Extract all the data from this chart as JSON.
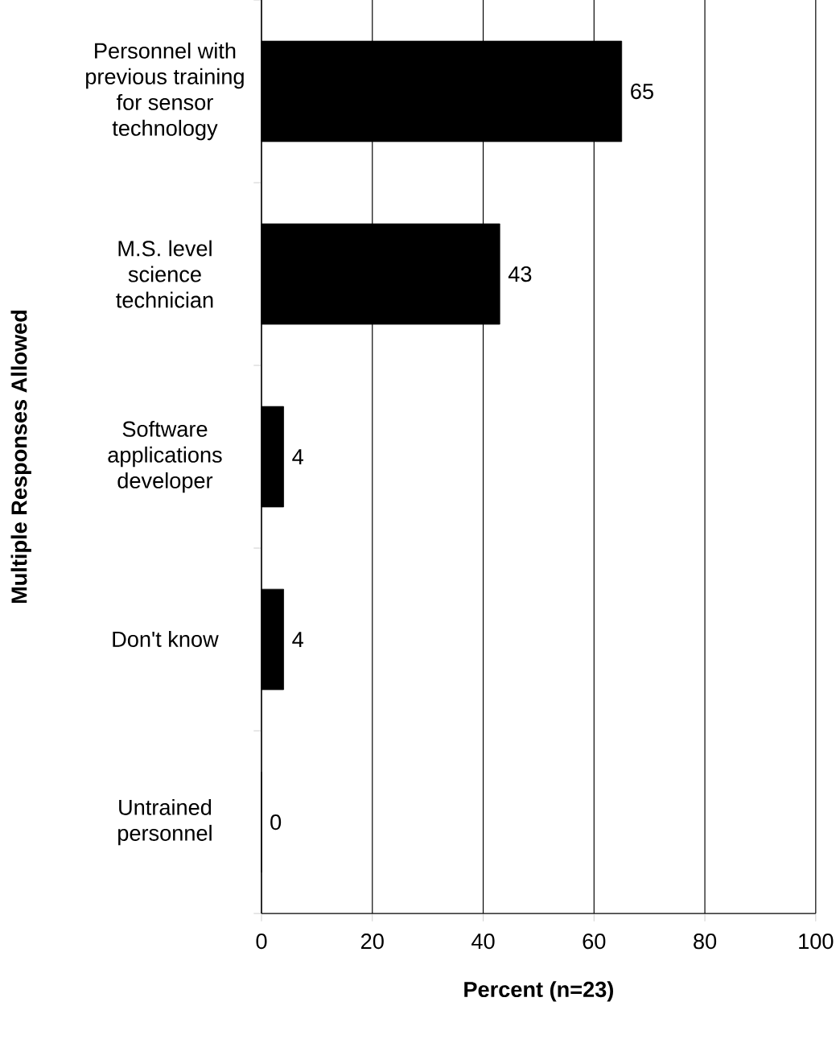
{
  "chart_data": {
    "type": "bar",
    "orientation": "horizontal",
    "xlabel": "Percent (n=23)",
    "ylabel": "Multiple Responses Allowed",
    "categories": [
      "Personnel with previous training for sensor technology",
      "M.S. level science technician",
      "Software applications developer",
      "Don't know",
      "Untrained personnel"
    ],
    "values": [
      65,
      43,
      4,
      4,
      0
    ],
    "color": "#000000",
    "data_labels": true,
    "xlim": [
      0,
      100
    ],
    "xticks": [
      0,
      20,
      40,
      60,
      80,
      100
    ],
    "grid": "x"
  }
}
